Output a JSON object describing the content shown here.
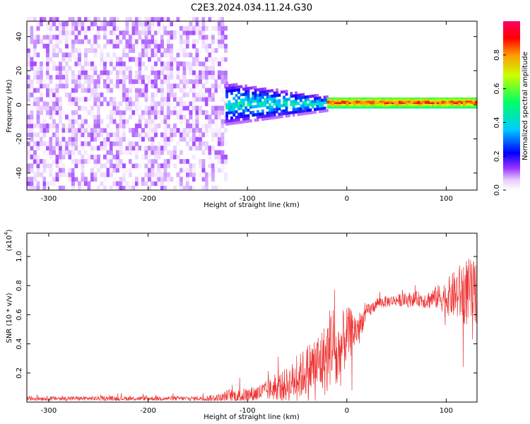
{
  "title": "C2E3.2024.034.11.24.G30",
  "chart_data": [
    {
      "type": "heatmap",
      "xlabel": "Height of straight line (km)",
      "ylabel": "Frequency (Hz)",
      "xlim": [
        -322,
        131
      ],
      "ylim": [
        -50,
        49
      ],
      "xticks": [
        -300,
        -200,
        -100,
        0,
        100
      ],
      "yticks": [
        -40,
        -20,
        0,
        20,
        40
      ],
      "colorbar": {
        "label": "Normalized spectral amplitude",
        "range": [
          0,
          1
        ],
        "ticks": [
          0.0,
          0.2,
          0.4,
          0.6,
          0.8
        ],
        "tick_labels": [
          "0.0",
          "0.2",
          "0.4",
          "0.6",
          "0.8"
        ]
      },
      "regions": [
        {
          "x_range": [
            -322,
            -122
          ],
          "freq_range": [
            -50,
            49
          ],
          "amplitude": [
            0.0,
            0.12
          ],
          "pattern": "noise"
        },
        {
          "x_range": [
            -122,
            -20
          ],
          "freq_range": [
            -12,
            12
          ],
          "amplitude": [
            0.1,
            0.55
          ],
          "pattern": "narrowing signal"
        },
        {
          "x_range": [
            -20,
            131
          ],
          "freq_range": [
            -2,
            4
          ],
          "amplitude": [
            0.5,
            1.0
          ],
          "pattern": "carrier line near 0-2 Hz"
        }
      ]
    },
    {
      "type": "line",
      "xlabel": "Height of straight line (km)",
      "ylabel": "SNR (10 * v/v)",
      "multiplier_label": "(x10",
      "multiplier_exp": "4",
      "xlim": [
        -322,
        131
      ],
      "ylim": [
        0,
        1.16
      ],
      "xticks": [
        -300,
        -200,
        -100,
        0,
        100
      ],
      "yticks": [
        0.2,
        0.4,
        0.6,
        0.8,
        1.0
      ],
      "series": [
        {
          "color": "#ee3333",
          "x": [
            -322,
            -300,
            -250,
            -200,
            -150,
            -125,
            -120,
            -110,
            -100,
            -90,
            -80,
            -70,
            -60,
            -50,
            -40,
            -30,
            -20,
            -15,
            -10,
            -5,
            0,
            5,
            10,
            15,
            20,
            25,
            30,
            40,
            50,
            60,
            70,
            80,
            90,
            100,
            110,
            120,
            131
          ],
          "y": [
            0.025,
            0.025,
            0.025,
            0.025,
            0.025,
            0.03,
            0.05,
            0.04,
            0.05,
            0.06,
            0.08,
            0.1,
            0.12,
            0.16,
            0.22,
            0.26,
            0.3,
            0.44,
            0.28,
            0.38,
            0.46,
            0.48,
            0.5,
            0.55,
            0.62,
            0.64,
            0.68,
            0.69,
            0.7,
            0.7,
            0.71,
            0.7,
            0.72,
            0.72,
            0.74,
            0.76,
            0.74
          ],
          "noise": [
            0.015,
            0.015,
            0.015,
            0.015,
            0.015,
            0.03,
            0.04,
            0.05,
            0.05,
            0.06,
            0.07,
            0.09,
            0.12,
            0.15,
            0.18,
            0.22,
            0.26,
            0.3,
            0.28,
            0.24,
            0.2,
            0.16,
            0.12,
            0.08,
            0.05,
            0.05,
            0.04,
            0.04,
            0.04,
            0.05,
            0.05,
            0.06,
            0.08,
            0.12,
            0.18,
            0.24,
            0.22
          ]
        }
      ]
    }
  ]
}
